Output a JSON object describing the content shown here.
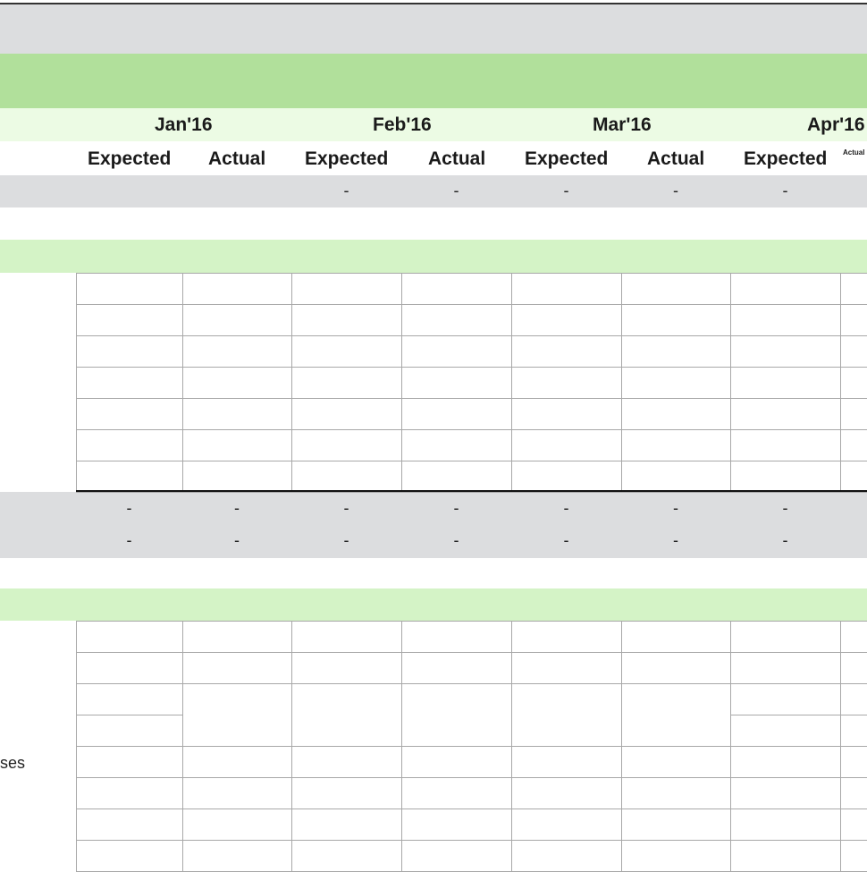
{
  "months": [
    "Jan'16",
    "Feb'16",
    "Mar'16",
    "Apr'16"
  ],
  "subheaders": [
    "Expected",
    "Actual",
    "Expected",
    "Actual",
    "Expected",
    "Actual",
    "Expected",
    "Actual"
  ],
  "summary_row": [
    "",
    "",
    "-",
    "-",
    "-",
    "-",
    "-",
    ""
  ],
  "total_rows": [
    [
      "-",
      "-",
      "-",
      "-",
      "-",
      "-",
      "-",
      ""
    ],
    [
      "-",
      "-",
      "-",
      "-",
      "-",
      "-",
      "-",
      ""
    ]
  ],
  "row_label_fragment": "ses",
  "colors": {
    "gray": "#dcdddf",
    "green": "#b1e09b",
    "light_green": "#d4f3c6",
    "grid": "#a8a8a8"
  }
}
